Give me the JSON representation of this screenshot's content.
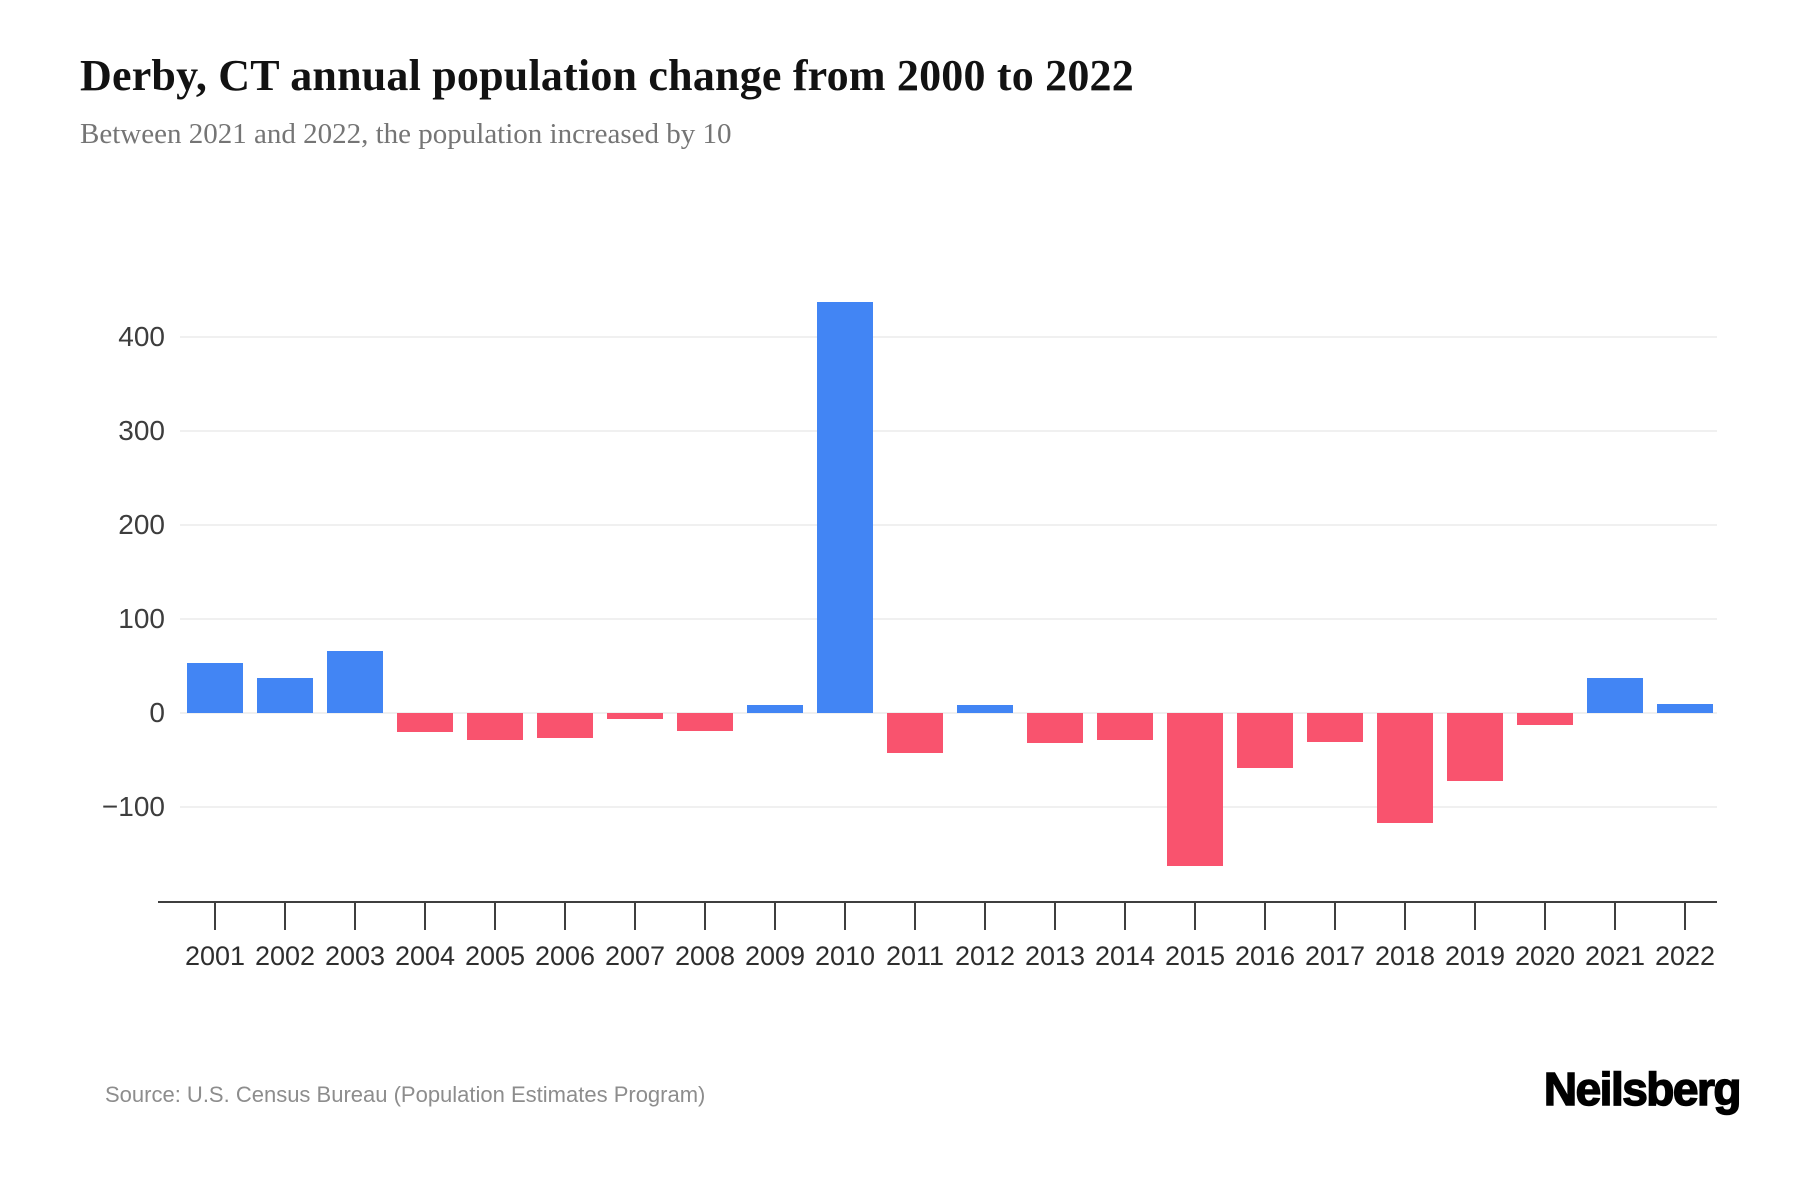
{
  "header": {
    "title": "Derby, CT annual population change from 2000 to 2022",
    "subtitle": "Between 2021 and 2022, the population increased by 10"
  },
  "footer": {
    "source": "Source: U.S. Census Bureau (Population Estimates Program)",
    "logo": "Neilsberg"
  },
  "chart_data": {
    "type": "bar",
    "title": "Derby, CT annual population change from 2000 to 2022",
    "subtitle": "Between 2021 and 2022, the population increased by 10",
    "series_label": "Annual population change",
    "categories": [
      "2001",
      "2002",
      "2003",
      "2004",
      "2005",
      "2006",
      "2007",
      "2008",
      "2009",
      "2010",
      "2011",
      "2012",
      "2013",
      "2014",
      "2015",
      "2016",
      "2017",
      "2018",
      "2019",
      "2020",
      "2021",
      "2022"
    ],
    "values": [
      53,
      37,
      66,
      -20,
      -29,
      -27,
      -6,
      -19,
      8,
      437,
      -43,
      8,
      -32,
      -29,
      -163,
      -59,
      -31,
      -117,
      -72,
      -13,
      37,
      10
    ],
    "y_ticks": [
      {
        "label": "400",
        "value": 400
      },
      {
        "label": "300",
        "value": 300
      },
      {
        "label": "200",
        "value": 200
      },
      {
        "label": "100",
        "value": 100
      },
      {
        "label": "0",
        "value": 0
      },
      {
        "label": "−100",
        "value": -100
      }
    ],
    "ylim": [
      -200,
      460
    ],
    "xlabel": "",
    "ylabel": "",
    "grid": "horizontal",
    "legend": "none",
    "colors": {
      "positive": "#4285f4",
      "negative": "#f9536e"
    }
  }
}
